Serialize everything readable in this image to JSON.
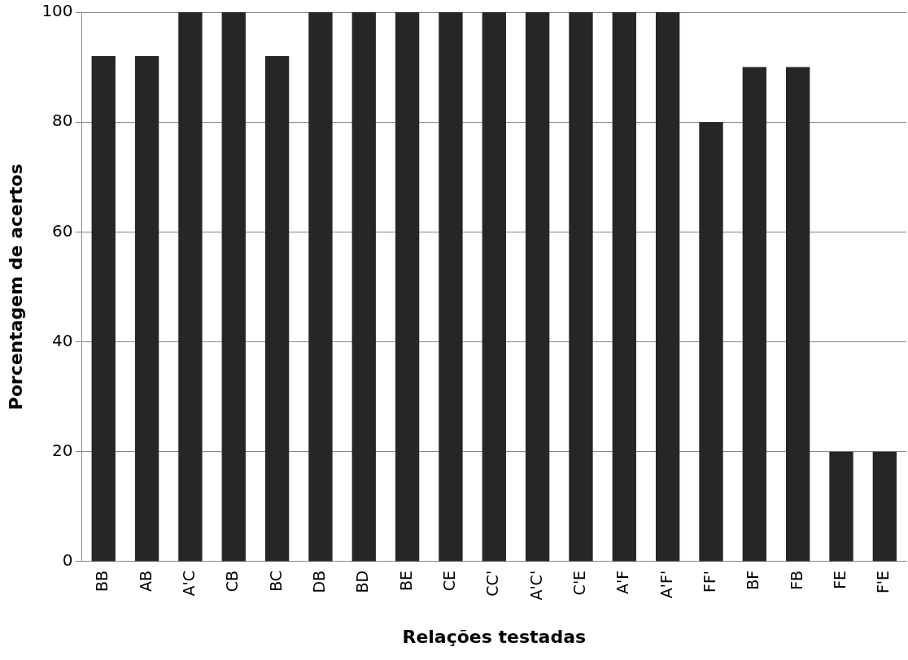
{
  "chart_data": {
    "type": "bar",
    "xlabel": "Relações testadas",
    "ylabel": "Porcentagem de acertos",
    "categories": [
      "BB",
      "AB",
      "A'C",
      "CB",
      "BC",
      "DB",
      "BD",
      "BE",
      "CE",
      "CC'",
      "A'C'",
      "C'E",
      "A'F",
      "A'F'",
      "FF'",
      "BF",
      "FB",
      "FE",
      "F'E"
    ],
    "values": [
      92,
      92,
      100,
      100,
      92,
      100,
      100,
      100,
      100,
      100,
      100,
      100,
      100,
      100,
      80,
      90,
      90,
      20,
      20
    ],
    "color": "#262626",
    "ylim": [
      0,
      100
    ],
    "yticks": [
      0,
      20,
      40,
      60,
      80,
      100
    ],
    "grid": "y",
    "legend": false
  }
}
